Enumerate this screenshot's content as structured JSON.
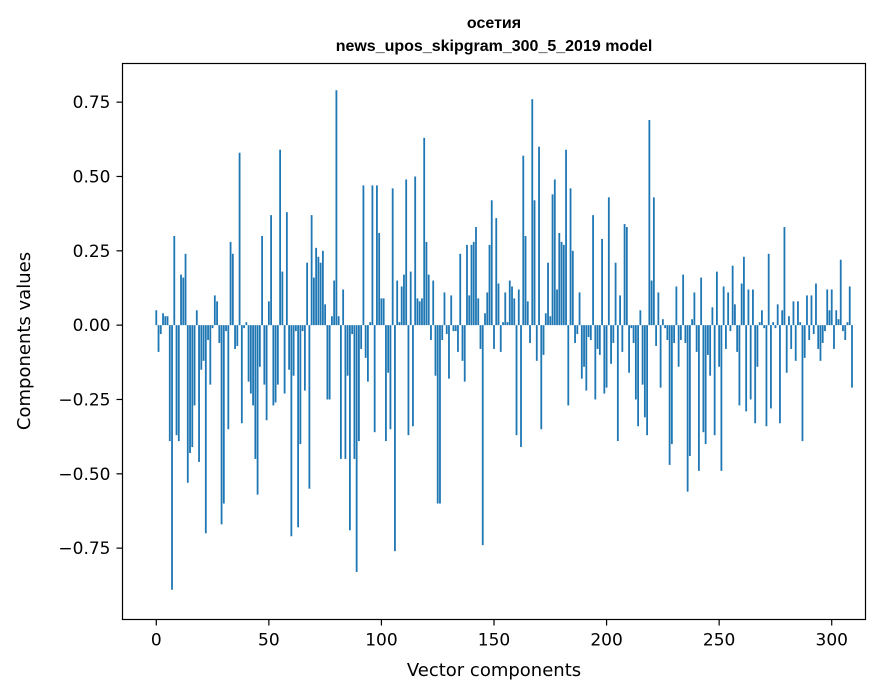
{
  "chart_data": {
    "type": "bar",
    "title": "осетия",
    "subtitle": "news_upos_skipgram_300_5_2019 model",
    "xlabel": "Vector components",
    "ylabel": "Components values",
    "xlim": [
      -15,
      315
    ],
    "ylim": [
      -0.99,
      0.88
    ],
    "xticks": [
      0,
      50,
      100,
      150,
      200,
      250,
      300
    ],
    "xtick_labels": [
      "0",
      "50",
      "100",
      "150",
      "200",
      "250",
      "300"
    ],
    "yticks": [
      -0.75,
      -0.5,
      -0.25,
      0.0,
      0.25,
      0.5,
      0.75
    ],
    "ytick_labels": [
      "−0.75",
      "−0.50",
      "−0.25",
      "0.00",
      "0.25",
      "0.50",
      "0.75"
    ],
    "color": "#1f77b4",
    "values": [
      0.05,
      -0.09,
      -0.03,
      0.04,
      0.03,
      0.03,
      -0.39,
      -0.89,
      0.3,
      -0.37,
      -0.39,
      0.17,
      0.16,
      0.24,
      -0.53,
      -0.43,
      -0.41,
      -0.27,
      0.05,
      -0.46,
      -0.15,
      -0.12,
      -0.7,
      -0.05,
      -0.2,
      -0.01,
      0.1,
      0.08,
      -0.06,
      -0.67,
      -0.6,
      -0.02,
      -0.35,
      0.28,
      0.24,
      -0.08,
      -0.07,
      0.58,
      -0.33,
      -0.01,
      0.01,
      -0.19,
      -0.23,
      -0.27,
      -0.45,
      -0.57,
      -0.14,
      0.3,
      -0.2,
      -0.32,
      0.08,
      0.37,
      -0.27,
      -0.26,
      -0.2,
      0.59,
      0.18,
      -0.23,
      0.38,
      -0.15,
      -0.71,
      -0.17,
      -0.02,
      -0.68,
      -0.4,
      -0.02,
      -0.22,
      0.21,
      -0.55,
      0.37,
      0.16,
      0.26,
      0.23,
      0.21,
      0.25,
      0.07,
      -0.25,
      -0.25,
      0.03,
      0.15,
      0.79,
      0.03,
      -0.45,
      0.12,
      -0.45,
      -0.17,
      -0.69,
      -0.03,
      -0.45,
      -0.83,
      -0.39,
      -0.08,
      0.47,
      -0.11,
      -0.19,
      0.01,
      0.47,
      -0.36,
      0.47,
      0.31,
      0.09,
      0.09,
      -0.39,
      -0.16,
      -0.35,
      0.46,
      -0.76,
      0.15,
      0.01,
      0.13,
      0.17,
      0.49,
      -0.37,
      0.18,
      -0.34,
      0.5,
      0.09,
      0.08,
      0.09,
      0.63,
      0.28,
      0.17,
      -0.05,
      0.15,
      -0.17,
      -0.6,
      -0.6,
      -0.05,
      0.11,
      -0.03,
      -0.18,
      0.1,
      -0.02,
      -0.02,
      -0.09,
      0.24,
      -0.12,
      -0.19,
      0.27,
      0.1,
      0.27,
      0.28,
      0.33,
      0.09,
      -0.08,
      -0.74,
      0.04,
      0.11,
      0.27,
      0.42,
      -0.08,
      0.36,
      0.14,
      -0.09,
      0.01,
      0.11,
      0.01,
      0.15,
      0.13,
      0.09,
      -0.37,
      0.12,
      -0.41,
      0.57,
      0.3,
      0.08,
      -0.06,
      0.76,
      0.42,
      -0.12,
      0.6,
      -0.35,
      -0.1,
      0.04,
      0.21,
      0.03,
      0.44,
      0.49,
      0.12,
      0.31,
      0.28,
      0.27,
      0.59,
      -0.27,
      0.46,
      0.25,
      -0.06,
      -0.03,
      0.11,
      -0.18,
      -0.14,
      -0.22,
      -0.04,
      -0.05,
      0.37,
      -0.25,
      -0.08,
      -0.1,
      0.29,
      -0.23,
      -0.21,
      0.43,
      -0.13,
      -0.06,
      0.21,
      -0.39,
      0.1,
      -0.09,
      0.34,
      0.33,
      -0.16,
      -0.01,
      -0.06,
      -0.25,
      -0.34,
      0.05,
      -0.2,
      -0.31,
      -0.37,
      0.69,
      0.15,
      0.43,
      -0.07,
      0.11,
      -0.21,
      0.02,
      -0.01,
      -0.05,
      -0.47,
      -0.4,
      -0.06,
      0.13,
      -0.14,
      -0.05,
      0.17,
      -0.06,
      -0.56,
      -0.44,
      0.02,
      0.11,
      -0.09,
      -0.49,
      0.16,
      -0.36,
      -0.4,
      -0.1,
      -0.17,
      0.06,
      -0.37,
      0.18,
      -0.14,
      -0.49,
      0.13,
      -0.08,
      0.11,
      -0.02,
      0.2,
      0.07,
      -0.09,
      -0.27,
      0.14,
      0.23,
      -0.29,
      0.12,
      -0.25,
      0.12,
      -0.33,
      -0.14,
      0.01,
      0.05,
      -0.01,
      -0.34,
      0.24,
      -0.28,
      0.01,
      -0.01,
      0.07,
      -0.33,
      0.05,
      0.33,
      -0.16,
      0.03,
      -0.08,
      0.08,
      -0.12,
      0.08,
      0.01,
      -0.39,
      -0.11,
      0.1,
      -0.05,
      0.1,
      -0.03,
      0.14,
      -0.08,
      -0.12,
      -0.06,
      -0.02,
      0.12,
      0.05,
      0.12,
      -0.08,
      0.05,
      0.02,
      0.22,
      -0.02,
      -0.05,
      0.01,
      0.13,
      -0.21
    ]
  }
}
